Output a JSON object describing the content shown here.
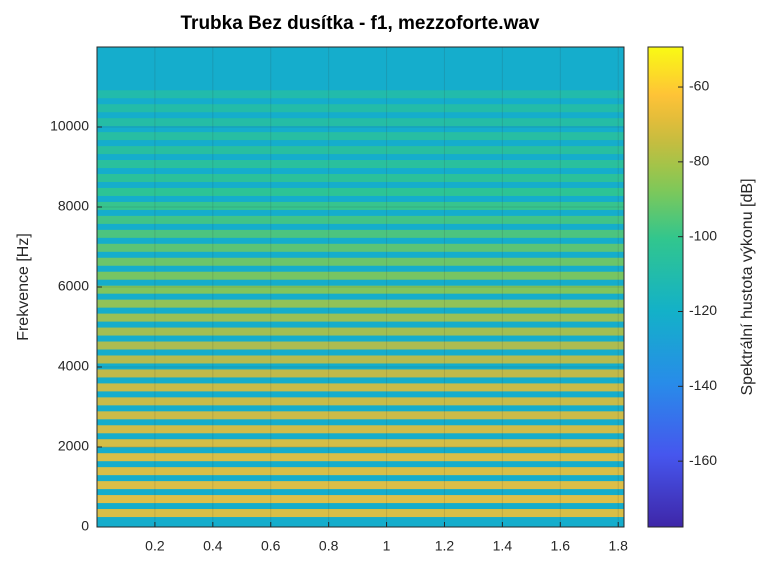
{
  "chart_data": {
    "type": "spectrogram",
    "title": "Trubka Bez dusítka - f1, mezzoforte.wav",
    "ylabel": "Frekvence [Hz]",
    "xlim": [
      0,
      1.82
    ],
    "xticks": [
      0.2,
      0.4,
      0.6,
      0.8,
      1,
      1.2,
      1.4,
      1.6,
      1.8
    ],
    "ylim": [
      0,
      12000
    ],
    "yticks": [
      0,
      2000,
      4000,
      6000,
      8000,
      10000
    ],
    "grid": true,
    "background": -122,
    "harmonics": {
      "frequencies": [
        349,
        698,
        1047,
        1396,
        1745,
        2094,
        2443,
        2792,
        3141,
        3490,
        3839,
        4188,
        4537,
        4886,
        5235,
        5584,
        5933,
        6282,
        6631,
        6980,
        7329,
        7678,
        8027,
        8376,
        8725,
        9074,
        9423,
        9772,
        10121,
        10470,
        10819
      ],
      "levels": [
        -66,
        -64,
        -65,
        -66,
        -66,
        -67,
        -68,
        -69,
        -70,
        -70,
        -72,
        -74,
        -76,
        -78,
        -80,
        -82,
        -85,
        -87,
        -89,
        -92,
        -95,
        -97,
        -99,
        -101,
        -103,
        -104,
        -105,
        -106,
        -107,
        -108,
        -109
      ]
    },
    "colorbar": {
      "label": "Spektrální hustota výkonu [dB]",
      "clim": [
        -177.6,
        -49.3
      ],
      "ticks": [
        -160,
        -140,
        -120,
        -100,
        -80,
        -60
      ]
    }
  }
}
